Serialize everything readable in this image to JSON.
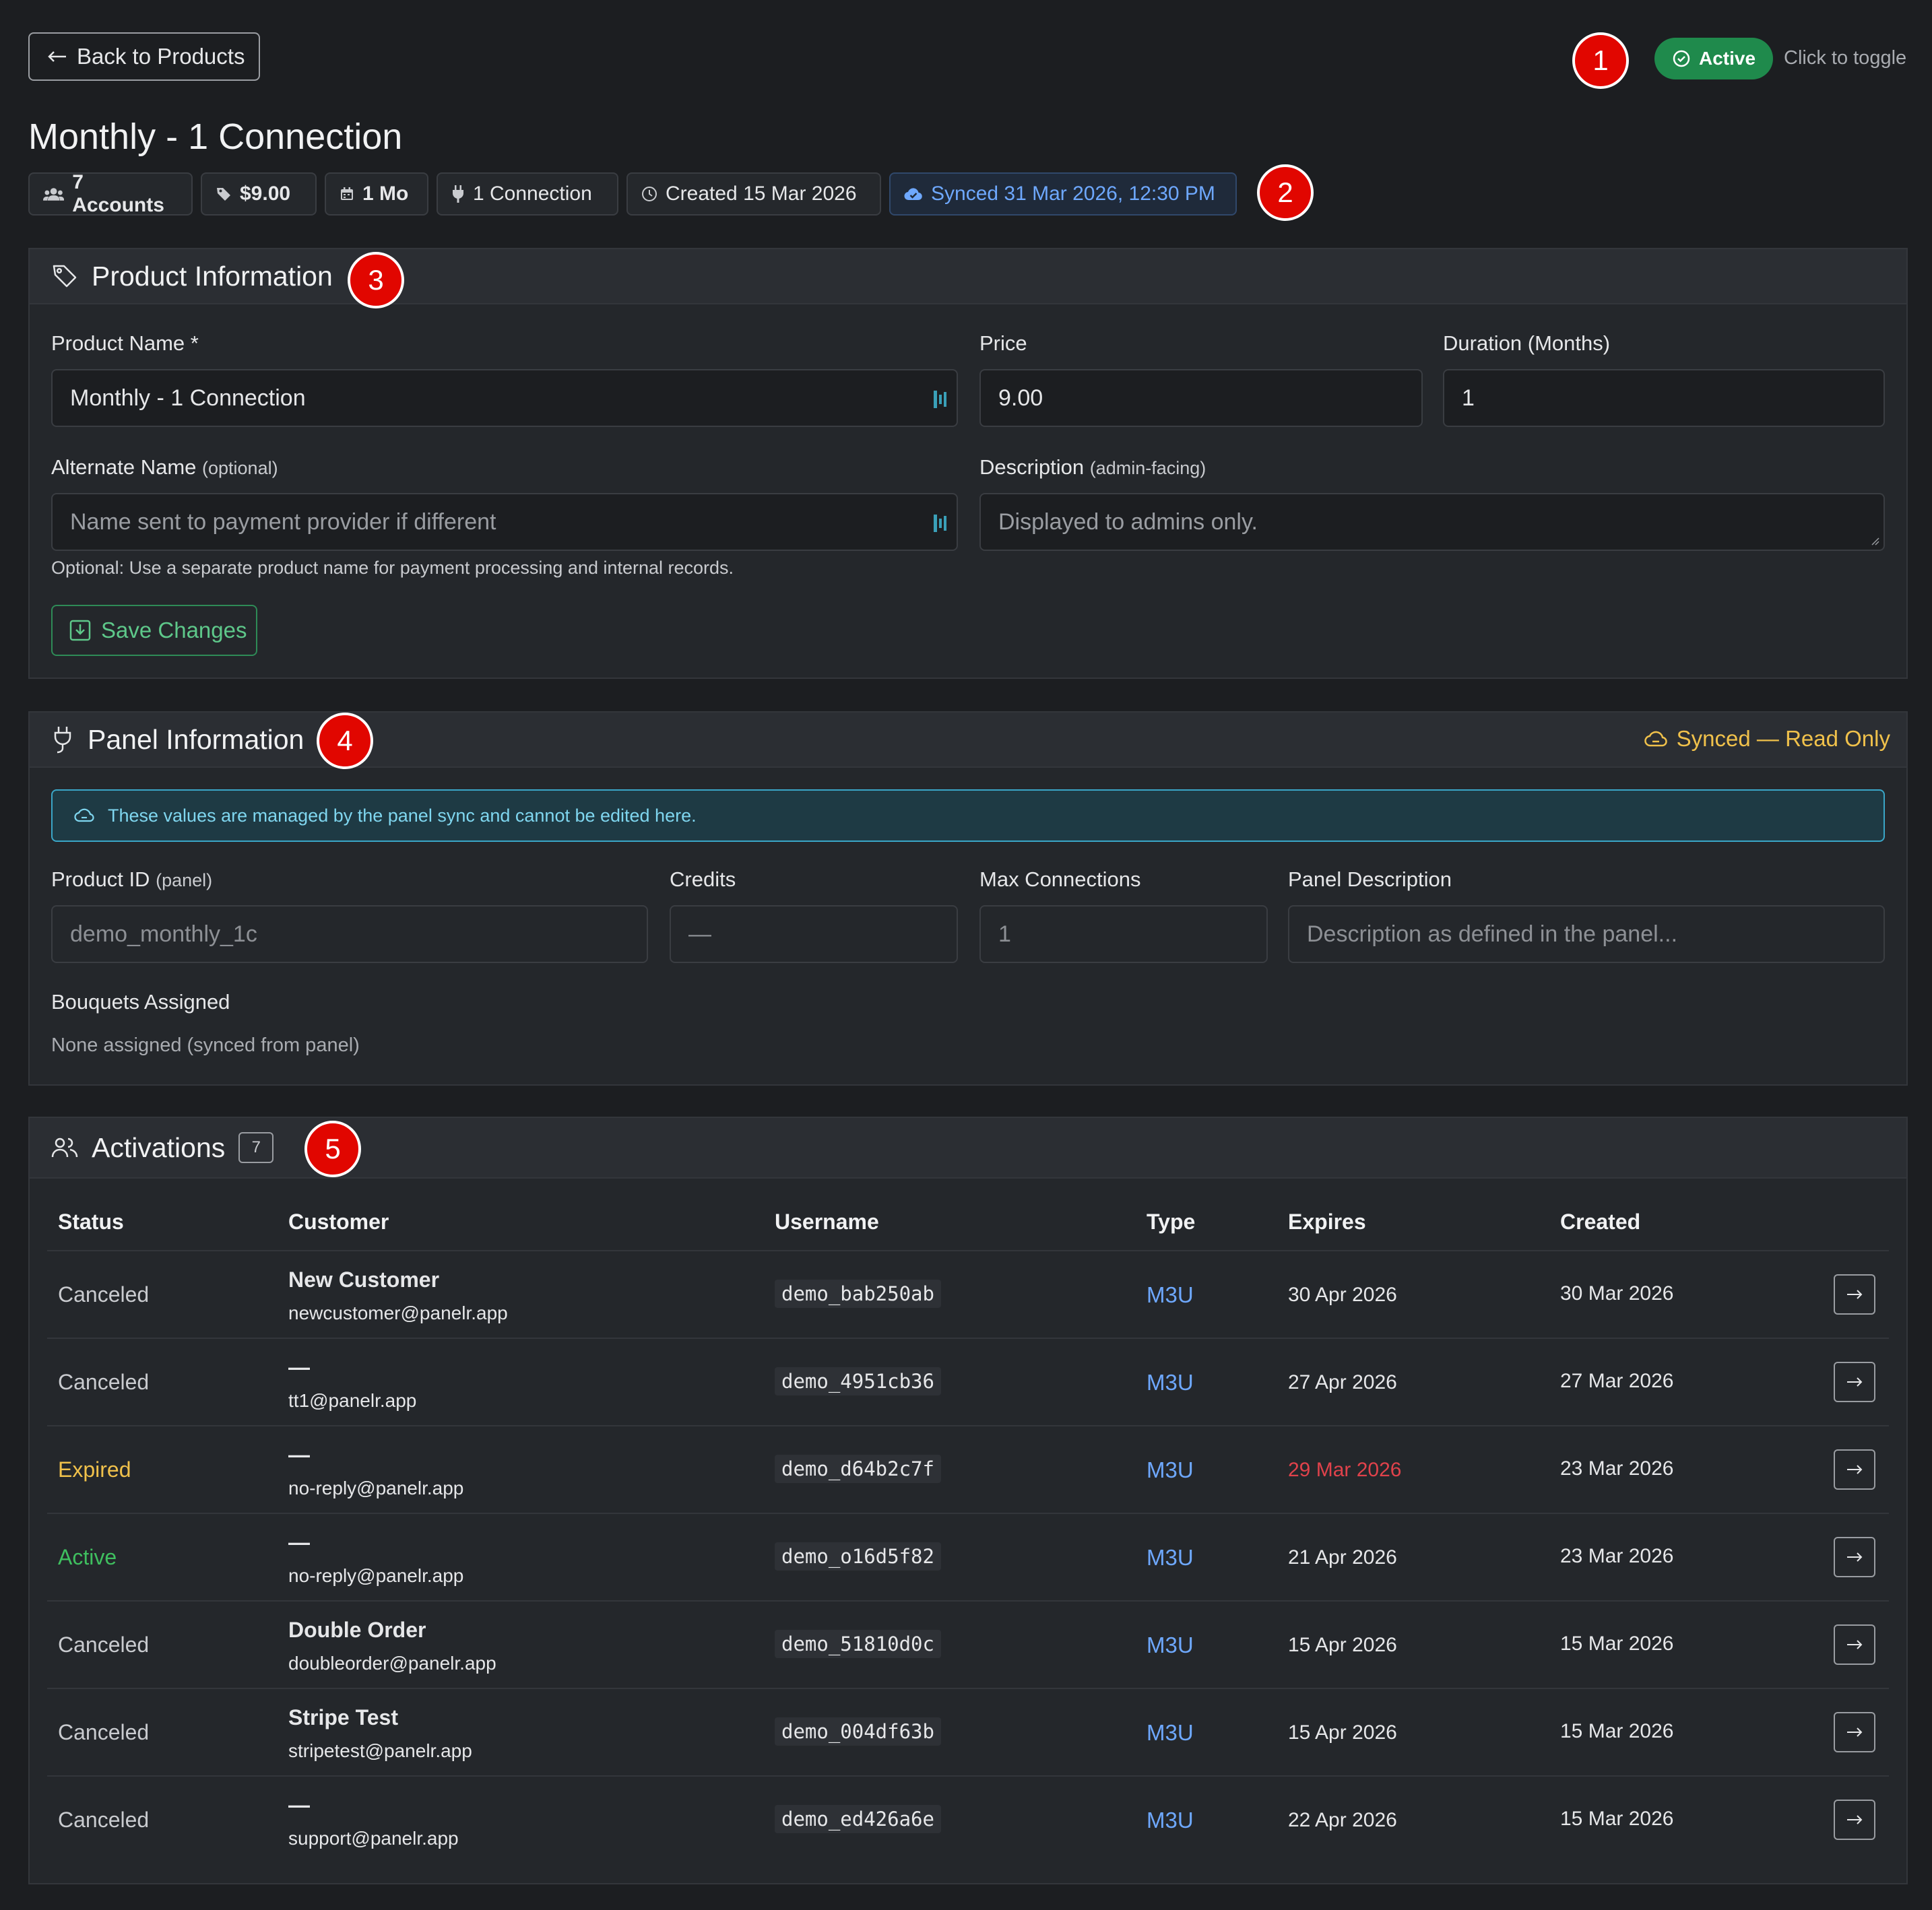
{
  "header": {
    "back_label": "Back to Products",
    "status_label": "Active",
    "toggle_hint": "Click to toggle",
    "title": "Monthly - 1 Connection"
  },
  "chips": {
    "accounts": "7 Accounts",
    "price": "$9.00",
    "duration": "1 Mo",
    "connections": "1 Connection",
    "created": "Created 15 Mar 2026",
    "synced": "Synced 31 Mar 2026, 12:30 PM"
  },
  "annotations": [
    "1",
    "2",
    "3",
    "4",
    "5"
  ],
  "product_info": {
    "title": "Product Information",
    "name_label": "Product Name *",
    "name_value": "Monthly - 1 Connection",
    "price_label": "Price",
    "price_value": "9.00",
    "duration_label": "Duration (Months)",
    "duration_value": "1",
    "alt_label": "Alternate Name",
    "alt_hint": "(optional)",
    "alt_placeholder": "Name sent to payment provider if different",
    "alt_help": "Optional: Use a separate product name for payment processing and internal records.",
    "desc_label": "Description",
    "desc_hint": "(admin-facing)",
    "desc_placeholder": "Displayed to admins only.",
    "save_label": "Save Changes"
  },
  "panel_info": {
    "title": "Panel Information",
    "status": "Synced — Read Only",
    "notice": "These values are managed by the panel sync and cannot be edited here.",
    "product_id_label": "Product ID",
    "product_id_hint": "(panel)",
    "product_id_value": "demo_monthly_1c",
    "credits_label": "Credits",
    "credits_value": "—",
    "max_conn_label": "Max Connections",
    "max_conn_value": "1",
    "panel_desc_label": "Panel Description",
    "panel_desc_placeholder": "Description as defined in the panel...",
    "bouquets_label": "Bouquets Assigned",
    "bouquets_value": "None assigned (synced from panel)"
  },
  "activations": {
    "title": "Activations",
    "count": "7",
    "columns": [
      "Status",
      "Customer",
      "Username",
      "Type",
      "Expires",
      "Created"
    ],
    "rows": [
      {
        "status": "Canceled",
        "status_color": "#c9cbcf",
        "name": "New Customer",
        "email": "newcustomer@panelr.app",
        "username": "demo_bab250ab",
        "type": "M3U",
        "expires": "30 Apr 2026",
        "expires_color": "#e6e7e9",
        "created": "30 Mar 2026"
      },
      {
        "status": "Canceled",
        "status_color": "#c9cbcf",
        "name": "—",
        "email": "tt1@panelr.app",
        "username": "demo_4951cb36",
        "type": "M3U",
        "expires": "27 Apr 2026",
        "expires_color": "#e6e7e9",
        "created": "27 Mar 2026"
      },
      {
        "status": "Expired",
        "status_color": "#f0c14b",
        "name": "—",
        "email": "no-reply@panelr.app",
        "username": "demo_d64b2c7f",
        "type": "M3U",
        "expires": "29 Mar 2026",
        "expires_color": "#e0424b",
        "created": "23 Mar 2026"
      },
      {
        "status": "Active",
        "status_color": "#3fbf5f",
        "name": "—",
        "email": "no-reply@panelr.app",
        "username": "demo_o16d5f82",
        "type": "M3U",
        "expires": "21 Apr 2026",
        "expires_color": "#e6e7e9",
        "created": "23 Mar 2026"
      },
      {
        "status": "Canceled",
        "status_color": "#c9cbcf",
        "name": "Double Order",
        "email": "doubleorder@panelr.app",
        "username": "demo_51810d0c",
        "type": "M3U",
        "expires": "15 Apr 2026",
        "expires_color": "#e6e7e9",
        "created": "15 Mar 2026"
      },
      {
        "status": "Canceled",
        "status_color": "#c9cbcf",
        "name": "Stripe Test",
        "email": "stripetest@panelr.app",
        "username": "demo_004df63b",
        "type": "M3U",
        "expires": "15 Apr 2026",
        "expires_color": "#e6e7e9",
        "created": "15 Mar 2026"
      },
      {
        "status": "Canceled",
        "status_color": "#c9cbcf",
        "name": "—",
        "email": "support@panelr.app",
        "username": "demo_ed426a6e",
        "type": "M3U",
        "expires": "22 Apr 2026",
        "expires_color": "#e6e7e9",
        "created": "15 Mar 2026"
      }
    ]
  }
}
